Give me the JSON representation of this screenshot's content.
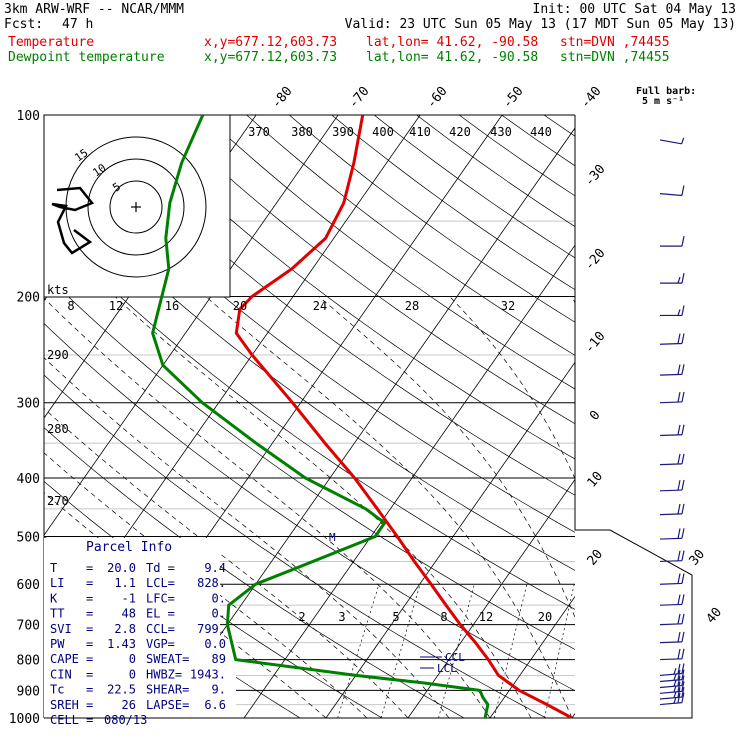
{
  "header": {
    "model": "3km ARW-WRF -- NCAR/MMM",
    "init": "Init: 00 UTC Sat 04 May 13",
    "fcst_label": "Fcst:",
    "fcst_value": "47 h",
    "valid": "Valid: 23 UTC Sun 05 May 13 (17 MDT Sun 05 May 13)",
    "temp_label": "Temperature",
    "dew_label": "Dewpoint temperature",
    "xy": "x,y=677.12,603.73",
    "latlon": "lat,lon= 41.62, -90.58",
    "stn": "stn=DVN ,74455"
  },
  "colors": {
    "temperature": "#e00000",
    "dewpoint": "#008000",
    "barbs": "#1a1a80",
    "index_text": "#000080"
  },
  "chart_data": {
    "type": "line",
    "pressure_levels": [
      100,
      200,
      300,
      400,
      500,
      600,
      700,
      800,
      900,
      1000
    ],
    "pressure_range": [
      100,
      1000
    ],
    "y_scale": "log-pressure (hPa)",
    "isotherm_labels": [
      "-80",
      "-70",
      "-60",
      "-50",
      "-40",
      "-30",
      "-20",
      "-10",
      "0",
      "10",
      "20",
      "30",
      "40"
    ],
    "theta_labels": [
      "370",
      "380",
      "390",
      "400",
      "410",
      "420",
      "430",
      "440"
    ],
    "theta_side_labels": [
      "290",
      "280",
      "270"
    ],
    "wind_speed_labels": [
      "8",
      "12",
      "16",
      "20",
      "24",
      "28",
      "32"
    ],
    "wind_speed_unit": "kts",
    "mixing_ratio_labels": [
      "2",
      "3",
      "5",
      "8",
      "12",
      "20"
    ],
    "hodograph_ring_labels": [
      "5",
      "10",
      "15"
    ],
    "full_barb_label": "Full barb:",
    "full_barb_value": "5 m s⁻¹",
    "lcl_marks": [
      "CCL",
      "LCL"
    ],
    "lfc_mark": "M",
    "temperature": [
      {
        "p": 1000,
        "t": 20.0
      },
      {
        "p": 950,
        "t": 15.8
      },
      {
        "p": 900,
        "t": 11.2
      },
      {
        "p": 850,
        "t": 7.4
      },
      {
        "p": 800,
        "t": 4.8
      },
      {
        "p": 750,
        "t": 1.8
      },
      {
        "p": 700,
        "t": -1.6
      },
      {
        "p": 650,
        "t": -5.0
      },
      {
        "p": 600,
        "t": -8.6
      },
      {
        "p": 550,
        "t": -12.6
      },
      {
        "p": 500,
        "t": -16.8
      },
      {
        "p": 450,
        "t": -21.6
      },
      {
        "p": 400,
        "t": -27.0
      },
      {
        "p": 350,
        "t": -33.6
      },
      {
        "p": 300,
        "t": -41.0
      },
      {
        "p": 250,
        "t": -50.0
      },
      {
        "p": 230,
        "t": -53.8
      },
      {
        "p": 210,
        "t": -55.4
      },
      {
        "p": 200,
        "t": -55.0
      },
      {
        "p": 180,
        "t": -52.5
      },
      {
        "p": 160,
        "t": -51.0
      },
      {
        "p": 140,
        "t": -51.8
      },
      {
        "p": 120,
        "t": -54.0
      },
      {
        "p": 100,
        "t": -57.0
      }
    ],
    "dewpoint": [
      {
        "p": 1000,
        "t": 9.4
      },
      {
        "p": 975,
        "t": 9.0
      },
      {
        "p": 950,
        "t": 8.6
      },
      {
        "p": 925,
        "t": 7.4
      },
      {
        "p": 900,
        "t": 6.4
      },
      {
        "p": 875,
        "t": -1.0
      },
      {
        "p": 850,
        "t": -10.0
      },
      {
        "p": 800,
        "t": -26.0
      },
      {
        "p": 700,
        "t": -30.0
      },
      {
        "p": 650,
        "t": -31.5
      },
      {
        "p": 600,
        "t": -30.0
      },
      {
        "p": 560,
        "t": -26.0
      },
      {
        "p": 500,
        "t": -19.5
      },
      {
        "p": 475,
        "t": -19.5
      },
      {
        "p": 450,
        "t": -23.0
      },
      {
        "p": 400,
        "t": -33.0
      },
      {
        "p": 350,
        "t": -42.0
      },
      {
        "p": 300,
        "t": -52.0
      },
      {
        "p": 260,
        "t": -60.0
      },
      {
        "p": 230,
        "t": -64.0
      },
      {
        "p": 200,
        "t": -66.0
      },
      {
        "p": 180,
        "t": -67.5
      },
      {
        "p": 160,
        "t": -70.5
      },
      {
        "p": 140,
        "t": -73.0
      },
      {
        "p": 120,
        "t": -75.0
      },
      {
        "p": 100,
        "t": -76.5
      }
    ],
    "wind_barbs": [
      {
        "p": 110,
        "speed": 5,
        "dir": 260
      },
      {
        "p": 135,
        "speed": 10,
        "dir": 265
      },
      {
        "p": 165,
        "speed": 10,
        "dir": 270
      },
      {
        "p": 190,
        "speed": 15,
        "dir": 270
      },
      {
        "p": 215,
        "speed": 15,
        "dir": 270
      },
      {
        "p": 240,
        "speed": 20,
        "dir": 272
      },
      {
        "p": 270,
        "speed": 20,
        "dir": 272
      },
      {
        "p": 300,
        "speed": 20,
        "dir": 272
      },
      {
        "p": 340,
        "speed": 20,
        "dir": 272
      },
      {
        "p": 380,
        "speed": 20,
        "dir": 272
      },
      {
        "p": 420,
        "speed": 20,
        "dir": 272
      },
      {
        "p": 460,
        "speed": 20,
        "dir": 272
      },
      {
        "p": 505,
        "speed": 20,
        "dir": 272
      },
      {
        "p": 550,
        "speed": 20,
        "dir": 272
      },
      {
        "p": 600,
        "speed": 20,
        "dir": 272
      },
      {
        "p": 650,
        "speed": 20,
        "dir": 272
      },
      {
        "p": 700,
        "speed": 20,
        "dir": 272
      },
      {
        "p": 750,
        "speed": 20,
        "dir": 272
      },
      {
        "p": 800,
        "speed": 20,
        "dir": 272
      },
      {
        "p": 850,
        "speed": 25,
        "dir": 275
      },
      {
        "p": 870,
        "speed": 25,
        "dir": 275
      },
      {
        "p": 890,
        "speed": 25,
        "dir": 275
      },
      {
        "p": 910,
        "speed": 25,
        "dir": 275
      },
      {
        "p": 930,
        "speed": 25,
        "dir": 275
      },
      {
        "p": 950,
        "speed": 25,
        "dir": 275
      }
    ]
  },
  "parcel_info": {
    "title": "Parcel Info",
    "rows": [
      {
        "l1": "T  ",
        "v1": "20.0",
        "l2": "Td =",
        "v2": "9.4"
      },
      {
        "l1": "LI ",
        "v1": "1.1",
        "l2": "LCL=",
        "v2": "828."
      },
      {
        "l1": "K  ",
        "v1": "-1",
        "l2": "LFC=",
        "v2": "0."
      },
      {
        "l1": "TT ",
        "v1": "48",
        "l2": "EL =",
        "v2": "0."
      },
      {
        "l1": "SVI",
        "v1": "2.8",
        "l2": "CCL=",
        "v2": "799."
      },
      {
        "l1": "PW ",
        "v1": "1.43",
        "l2": "VGP=",
        "v2": "0.0"
      },
      {
        "l1": "CAPE",
        "v1": "0",
        "l2": "SWEAT=",
        "v2": "89"
      },
      {
        "l1": "CIN ",
        "v1": "0",
        "l2": "HWBZ=",
        "v2": "1943."
      },
      {
        "l1": "Tc  ",
        "v1": "22.5",
        "l2": "SHEAR=",
        "v2": "9."
      },
      {
        "l1": "SREH",
        "v1": "26",
        "l2": "LAPSE=",
        "v2": "6.6"
      }
    ],
    "cell_label": "CELL =",
    "cell_value": "080/13"
  }
}
